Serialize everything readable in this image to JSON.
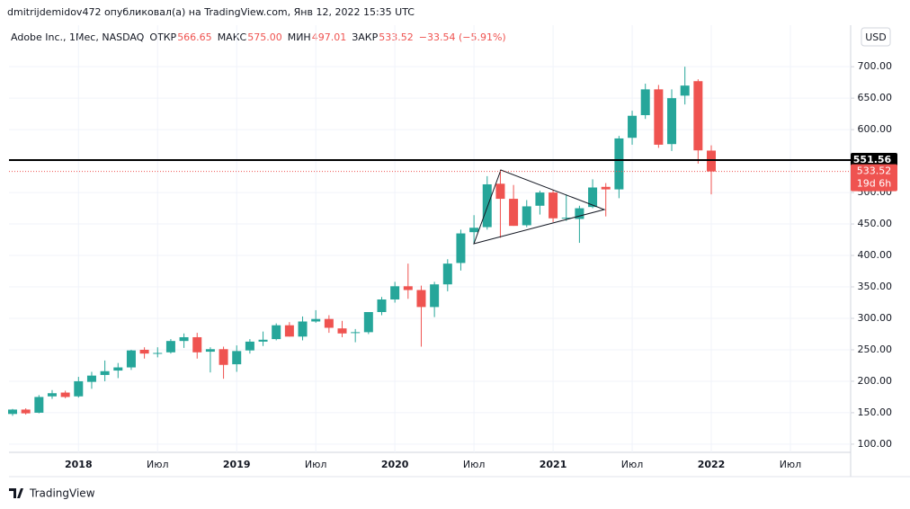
{
  "header": "dmitrijdemidov472 опубликовал(а) на TradingView.com, Янв 12, 2022 15:35 UTC",
  "footer": "TradingView",
  "chart_data": {
    "type": "candlestick",
    "legend": {
      "symbol": "Adobe Inc., 1Мес, NASDAQ",
      "open_label": "ОТКР",
      "open": "566.65",
      "high_label": "МАКС",
      "high": "575.00",
      "low_label": "МИН",
      "low": "497.01",
      "close_label": "ЗАКР",
      "close": "533.52",
      "change": "−33.54 (−5.91%)"
    },
    "currency": "USD",
    "up_color": "#26a69a",
    "down_color": "#ef5350",
    "categories": [
      null,
      null,
      null,
      null,
      null,
      "2018",
      null,
      null,
      null,
      null,
      null,
      "Июл",
      null,
      null,
      null,
      null,
      null,
      "2019",
      null,
      null,
      null,
      null,
      null,
      "Июл",
      null,
      null,
      null,
      null,
      null,
      "2020",
      null,
      null,
      null,
      null,
      null,
      "Июл",
      null,
      null,
      null,
      null,
      null,
      "2021",
      null,
      null,
      null,
      null,
      null,
      "Июл",
      null,
      null,
      null,
      null,
      null,
      "2022",
      null,
      null,
      null,
      null,
      null,
      "Июл",
      null,
      null,
      null,
      null
    ],
    "open": [
      148,
      155,
      150,
      176,
      182,
      176,
      199,
      210,
      217,
      222,
      250,
      245,
      246,
      264,
      270,
      247,
      251,
      227,
      249,
      263,
      267,
      289,
      271,
      295,
      299,
      284,
      277,
      278,
      310,
      330,
      351,
      345,
      318,
      354,
      388,
      437,
      445,
      514,
      490,
      448,
      479,
      500,
      459,
      458,
      477,
      509,
      505,
      587,
      623,
      664,
      577,
      654,
      677,
      566.65,
      null,
      null,
      null,
      null,
      null,
      null,
      null,
      null,
      null,
      null
    ],
    "high": [
      156,
      157,
      178,
      186,
      185,
      207,
      215,
      233,
      229,
      250,
      254,
      254,
      267,
      276,
      277,
      254,
      255,
      257,
      267,
      279,
      292,
      294,
      303,
      313,
      305,
      296,
      283,
      310,
      334,
      358,
      387,
      352,
      358,
      394,
      441,
      464,
      526,
      536,
      512,
      488,
      503,
      504,
      497,
      479,
      521,
      515,
      590,
      630,
      673,
      671,
      664,
      700,
      680,
      575,
      null,
      null,
      null,
      null,
      null,
      null,
      null,
      null,
      null,
      null
    ],
    "low": [
      145,
      147,
      149,
      172,
      173,
      174,
      188,
      200,
      205,
      218,
      236,
      238,
      244,
      253,
      236,
      214,
      204,
      215,
      244,
      256,
      265,
      271,
      265,
      293,
      277,
      270,
      262,
      275,
      305,
      325,
      331,
      255,
      302,
      343,
      376,
      418,
      441,
      428,
      447,
      445,
      465,
      453,
      455,
      420,
      475,
      462,
      491,
      576,
      617,
      571,
      566,
      640,
      546,
      497.01,
      null,
      null,
      null,
      null,
      null,
      null,
      null,
      null,
      null,
      null
    ],
    "close": [
      155,
      149,
      175,
      181,
      175,
      200,
      209,
      216,
      222,
      249,
      244,
      245,
      264,
      270,
      246,
      251,
      226,
      248,
      263,
      266,
      289,
      271,
      295,
      299,
      285,
      276,
      278,
      310,
      330,
      351,
      345,
      318,
      354,
      387,
      435,
      444,
      513,
      490,
      447,
      478,
      500,
      459,
      460,
      475,
      508,
      505,
      586,
      622,
      664,
      576,
      650,
      670,
      567,
      533.52,
      null,
      null,
      null,
      null,
      null,
      null,
      null,
      null,
      null,
      null
    ],
    "ylim": [
      87,
      766
    ],
    "yticks": [
      {
        "value": 100,
        "label": "100.00"
      },
      {
        "value": 150,
        "label": "150.00"
      },
      {
        "value": 200,
        "label": "200.00"
      },
      {
        "value": 250,
        "label": "250.00"
      },
      {
        "value": 300,
        "label": "300.00"
      },
      {
        "value": 350,
        "label": "350.00"
      },
      {
        "value": 400,
        "label": "400.00"
      },
      {
        "value": 450,
        "label": "450.00"
      },
      {
        "value": 500,
        "label": "500.00"
      },
      {
        "value": 550,
        "label": "550.00"
      },
      {
        "value": 600,
        "label": "600.00"
      },
      {
        "value": 650,
        "label": "650.00"
      },
      {
        "value": 700,
        "label": "700.00"
      }
    ],
    "hline": {
      "value": 551.56,
      "label": "551.56",
      "color": "#000000"
    },
    "last_price": {
      "value": 533.52,
      "label": "533.52",
      "countdown": "19d 6h",
      "color": "#ef5350"
    },
    "grid": true
  }
}
